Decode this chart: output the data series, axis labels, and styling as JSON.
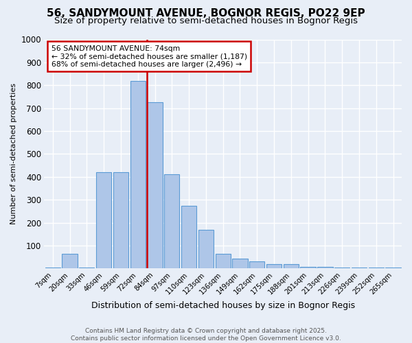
{
  "title1": "56, SANDYMOUNT AVENUE, BOGNOR REGIS, PO22 9EP",
  "title2": "Size of property relative to semi-detached houses in Bognor Regis",
  "xlabel": "Distribution of semi-detached houses by size in Bognor Regis",
  "ylabel": "Number of semi-detached properties",
  "categories": [
    "7sqm",
    "20sqm",
    "33sqm",
    "46sqm",
    "59sqm",
    "72sqm",
    "84sqm",
    "97sqm",
    "110sqm",
    "123sqm",
    "136sqm",
    "149sqm",
    "162sqm",
    "175sqm",
    "188sqm",
    "201sqm",
    "213sqm",
    "226sqm",
    "239sqm",
    "252sqm",
    "265sqm"
  ],
  "values": [
    5,
    63,
    5,
    420,
    420,
    820,
    725,
    410,
    275,
    170,
    63,
    42,
    32,
    18,
    18,
    7,
    7,
    3,
    3,
    3,
    5
  ],
  "bar_color": "#aec6e8",
  "bar_edge_color": "#5b9bd5",
  "vline_index": 6,
  "vline_color": "#cc0000",
  "annotation_text": "56 SANDYMOUNT AVENUE: 74sqm\n← 32% of semi-detached houses are smaller (1,187)\n68% of semi-detached houses are larger (2,496) →",
  "annotation_box_color": "#ffffff",
  "annotation_box_edge": "#cc0000",
  "footer": "Contains HM Land Registry data © Crown copyright and database right 2025.\nContains public sector information licensed under the Open Government Licence v3.0.",
  "ylim": [
    0,
    1000
  ],
  "yticks": [
    0,
    100,
    200,
    300,
    400,
    500,
    600,
    700,
    800,
    900,
    1000
  ],
  "bg_color": "#e8eef7",
  "grid_color": "#ffffff",
  "title_fontsize": 11,
  "subtitle_fontsize": 9.5
}
